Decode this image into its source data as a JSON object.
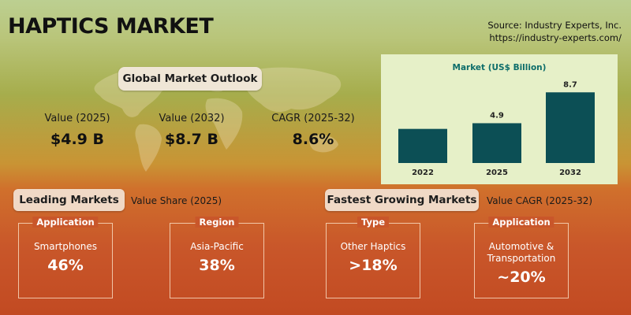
{
  "header": {
    "title": "HAPTICS MARKET",
    "source_line1": "Source: Industry Experts, Inc.",
    "source_line2": "https://industry-experts.com/"
  },
  "outlook": {
    "heading": "Global Market Outlook",
    "kpis": [
      {
        "label": "Value (2025)",
        "value": "$4.9 B"
      },
      {
        "label": "Value (2032)",
        "value": "$8.7 B"
      },
      {
        "label": "CAGR (2025-32)",
        "value": "8.6%"
      }
    ]
  },
  "leading": {
    "heading": "Leading Markets",
    "subheading": "Value Share (2025)",
    "cards": [
      {
        "tag": "Application",
        "name": "Smartphones",
        "value": "46%"
      },
      {
        "tag": "Region",
        "name": "Asia-Pacific",
        "value": "38%"
      }
    ]
  },
  "fastest": {
    "heading": "Fastest Growing Markets",
    "subheading": "Value CAGR (2025-32)",
    "cards": [
      {
        "tag": "Type",
        "name": "Other Haptics",
        "value": ">18%"
      },
      {
        "tag": "Application",
        "name": "Automotive & Transportation",
        "value": "~20%"
      }
    ]
  },
  "colors": {
    "bar": "#0c4f55",
    "chart_panel": "#e6f0c8",
    "title_text": "#0d6d6a"
  },
  "chart_data": {
    "type": "bar",
    "title": "Market (US$ Billion)",
    "categories": [
      "2022",
      "2025",
      "2032"
    ],
    "values": [
      null,
      4.9,
      8.7
    ],
    "data_labels": [
      "",
      "4.9",
      "8.7"
    ],
    "note": "2022 bar is unlabeled; bar height corresponds to approximately 4.2",
    "series": [
      {
        "values": [
          4.2,
          4.9,
          8.7
        ]
      }
    ],
    "ylim": [
      0,
      9.5
    ],
    "grid": false
  }
}
